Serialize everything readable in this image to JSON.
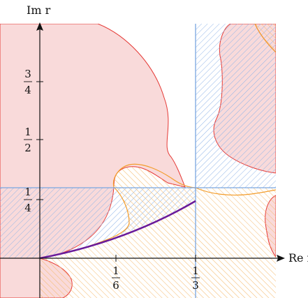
{
  "axes": {
    "x_label": "Re r",
    "y_label": "Im r"
  },
  "x_ticks": [
    {
      "num": "1",
      "den": "6",
      "value": 0.1667
    },
    {
      "num": "1",
      "den": "3",
      "value": 0.3333
    }
  ],
  "y_ticks": [
    {
      "num": "1",
      "den": "4",
      "value": 0.25
    },
    {
      "num": "1",
      "den": "2",
      "value": 0.5
    },
    {
      "num": "3",
      "den": "4",
      "value": 0.75
    }
  ],
  "colors": {
    "red_region_fill": "#f9dada",
    "red_boundary": "#e53935",
    "orange_boundary": "#f39c2a",
    "orange_hatch": "#f5b96b",
    "blue_boundary": "#7aa6e0",
    "blue_hatch": "#8fb4e8",
    "purple_curve": "#6a1b9a",
    "axis": "#111111"
  }
}
